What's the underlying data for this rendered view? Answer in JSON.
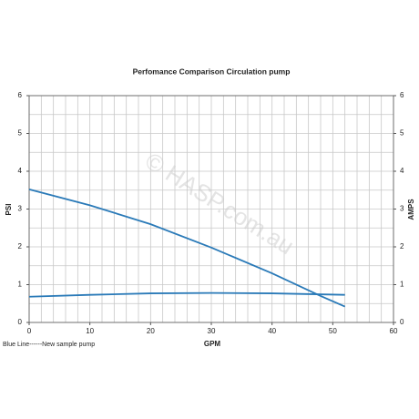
{
  "chart_data": {
    "type": "line",
    "title": "Perfomance Comparison Circulation pump",
    "xlabel": "GPM",
    "ylabel": "PSI",
    "y2label": "AMPS",
    "note": "Blue Line------New sample pump",
    "watermark": "© HASP.com.au",
    "xlim": [
      0,
      60
    ],
    "xticks": [
      0,
      10,
      20,
      30,
      40,
      50,
      60
    ],
    "xminorticks": [
      0,
      2,
      4,
      6,
      8,
      10,
      12,
      14,
      16,
      18,
      20,
      22,
      24,
      26,
      28,
      30,
      32,
      34,
      36,
      38,
      40,
      42,
      44,
      46,
      48,
      50,
      52,
      54,
      56,
      58,
      60
    ],
    "ylim": [
      0,
      6
    ],
    "yticks": [
      0,
      1,
      2,
      3,
      4,
      5,
      6
    ],
    "yminorticks": [
      0,
      0.5,
      1,
      1.5,
      2,
      2.5,
      3,
      3.5,
      4,
      4.5,
      5,
      5.5,
      6
    ],
    "y2lim": [
      0,
      6
    ],
    "y2ticks": [
      0,
      1,
      2,
      3,
      4,
      5,
      6
    ],
    "grid": true,
    "series": [
      {
        "name": "PSI",
        "color": "#2a7ab8",
        "x": [
          0,
          10,
          20,
          30,
          40,
          48,
          52
        ],
        "values": [
          3.52,
          3.1,
          2.6,
          1.98,
          1.3,
          0.7,
          0.42
        ]
      },
      {
        "name": "AMPS",
        "color": "#2a7ab8",
        "axis": "y2",
        "x": [
          0,
          10,
          20,
          30,
          40,
          52
        ],
        "values": [
          0.68,
          0.73,
          0.77,
          0.78,
          0.77,
          0.73
        ]
      }
    ]
  }
}
